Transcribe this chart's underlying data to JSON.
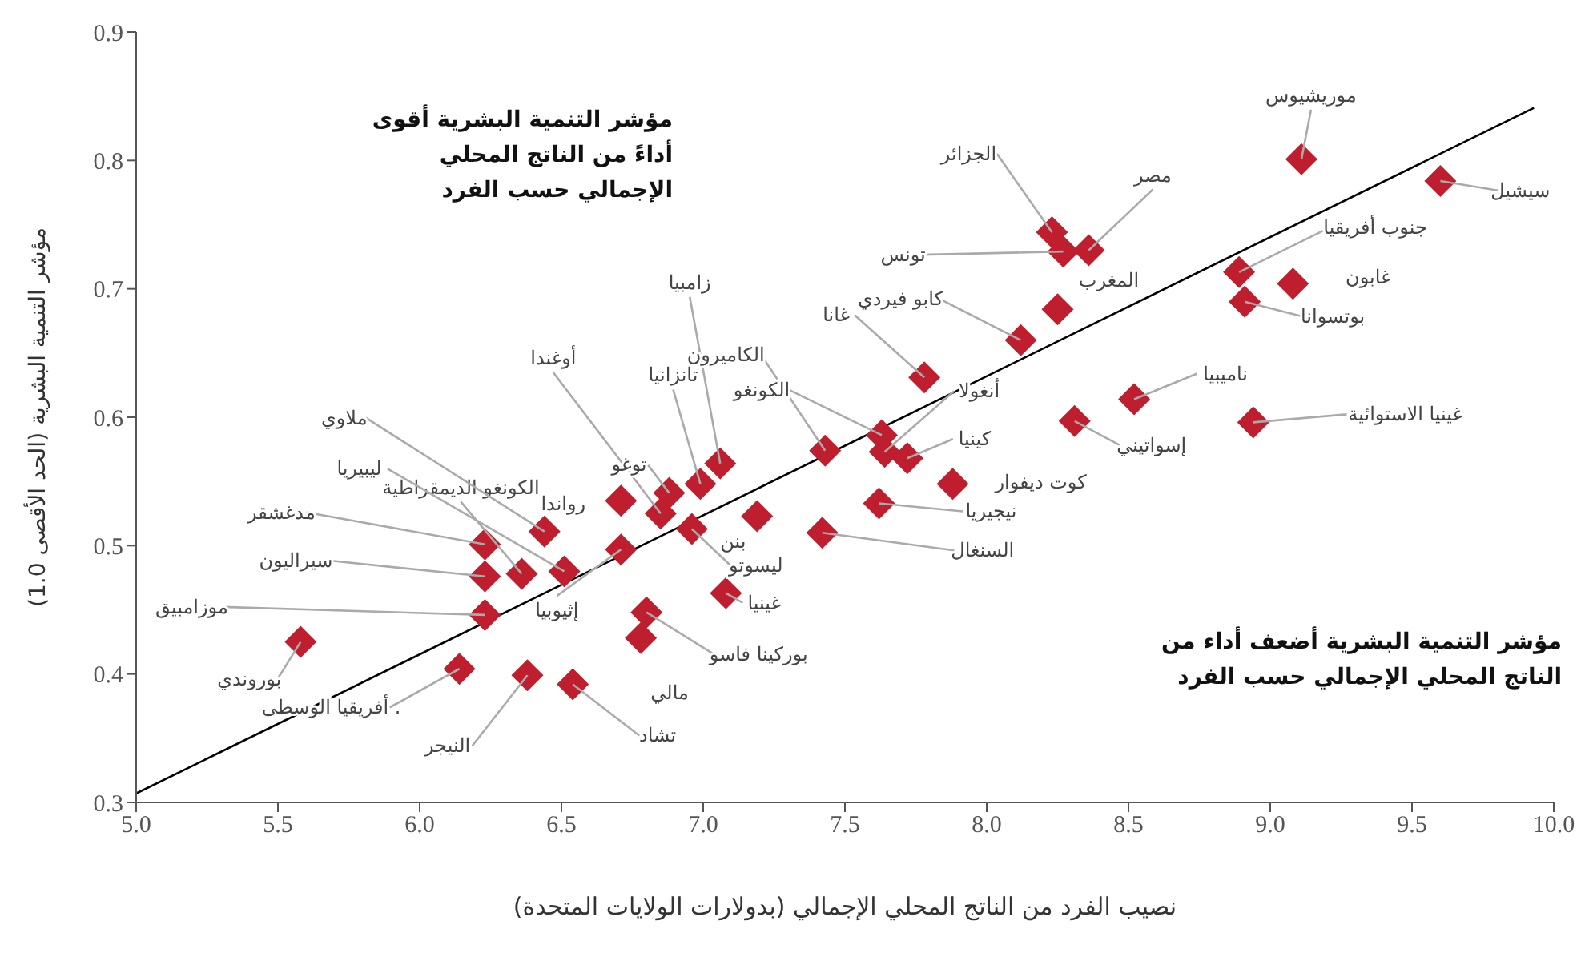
{
  "chart_data": {
    "type": "scatter",
    "xlabel": "نصيب الفرد من الناتج المحلي الإجمالي (بدولارات الولايات المتحدة)",
    "ylabel": "مؤشر التنمية البشرية (الحد الأقصى 1.0)",
    "xlim": [
      5,
      10
    ],
    "ylim": [
      0.3,
      0.9
    ],
    "xticks": [
      {
        "value": 5,
        "label": "5.0"
      },
      5.5,
      {
        "value": 6,
        "label": "6.0"
      },
      6.5,
      {
        "value": 7,
        "label": "7.0"
      },
      7.5,
      {
        "value": 8,
        "label": "8.0"
      },
      8.5,
      {
        "value": 9,
        "label": "9.0"
      },
      9.5,
      {
        "value": 10,
        "label": "10.0"
      }
    ],
    "yticks": [
      0.3,
      0.4,
      0.5,
      0.6,
      0.7,
      0.8,
      0.9
    ],
    "grid": false,
    "legend": false,
    "series": [
      {
        "type": "scatter",
        "color": "#be1e2d",
        "marker": "diamond",
        "x": [
          5.58,
          6.23,
          6.23,
          6.23,
          6.36,
          6.51,
          6.44,
          6.14,
          6.38,
          6.54,
          6.78,
          6.8,
          6.71,
          6.71,
          6.85,
          6.88,
          6.99,
          7.06,
          6.96,
          7.19,
          7.08,
          7.43,
          7.63,
          7.64,
          7.72,
          7.88,
          7.62,
          7.42,
          7.78,
          8.12,
          8.25,
          8.23,
          8.27,
          8.36,
          9.11,
          9.6,
          8.89,
          8.91,
          9.08,
          8.52,
          8.31,
          8.94
        ],
        "values": [
          0.425,
          0.446,
          0.476,
          0.501,
          0.478,
          0.48,
          0.511,
          0.404,
          0.399,
          0.392,
          0.428,
          0.448,
          0.497,
          0.535,
          0.525,
          0.541,
          0.548,
          0.564,
          0.513,
          0.523,
          0.463,
          0.574,
          0.586,
          0.573,
          0.568,
          0.548,
          0.533,
          0.51,
          0.631,
          0.66,
          0.684,
          0.744,
          0.729,
          0.73,
          0.801,
          0.784,
          0.713,
          0.69,
          0.704,
          0.614,
          0.597,
          0.596
        ]
      },
      {
        "type": "line",
        "color": "#000000",
        "marker": "none",
        "line_style": "solid",
        "x": [
          5,
          9.93
        ],
        "values": [
          0.307,
          0.841
        ]
      }
    ],
    "annotations": [
      "مؤشر التنمية البشرية أقوى أداءً من الناتج المحلي الإجمالي حسب الفرد",
      "مؤشر التنمية البشرية أضعف أداء من الناتج المحلي الإجمالي حسب الفرد",
      {
        "text": "بوروندي",
        "x": 5.58,
        "y": 0.425
      },
      {
        "text": "موزامبيق",
        "x": 6.23,
        "y": 0.446
      },
      {
        "text": "سيراليون",
        "x": 6.23,
        "y": 0.476
      },
      {
        "text": "مدغشقر",
        "x": 6.23,
        "y": 0.501
      },
      {
        "text": "الكونغو الديمقراطية",
        "x": 6.36,
        "y": 0.478
      },
      {
        "text": "ليبيريا",
        "x": 6.51,
        "y": 0.48
      },
      {
        "text": "ملاوي",
        "x": 6.44,
        "y": 0.511
      },
      {
        "text": ". أفريقيا الوسطى",
        "x": 6.14,
        "y": 0.404
      },
      {
        "text": "النيجر",
        "x": 6.38,
        "y": 0.399
      },
      {
        "text": "تشاد",
        "x": 6.54,
        "y": 0.392
      },
      {
        "text": "مالي",
        "x": 6.78,
        "y": 0.428
      },
      {
        "text": "بوركينا فاسو",
        "x": 6.8,
        "y": 0.448
      },
      {
        "text": "إثيوبيا",
        "x": 6.71,
        "y": 0.497
      },
      {
        "text": "رواندا",
        "x": 6.71,
        "y": 0.535
      },
      {
        "text": "أوغندا",
        "x": 6.85,
        "y": 0.525
      },
      {
        "text": "توغو",
        "x": 6.88,
        "y": 0.541
      },
      {
        "text": "تانزانيا",
        "x": 6.99,
        "y": 0.548
      },
      {
        "text": "زامبيا",
        "x": 7.06,
        "y": 0.564
      },
      {
        "text": "ليسوتو",
        "x": 6.96,
        "y": 0.513
      },
      {
        "text": "بنن",
        "x": 7.19,
        "y": 0.523
      },
      {
        "text": "غينيا",
        "x": 7.08,
        "y": 0.463
      },
      {
        "text": "الكاميرون",
        "x": 7.43,
        "y": 0.574
      },
      {
        "text": "الكونغو",
        "x": 7.63,
        "y": 0.586
      },
      {
        "text": "أنغولا",
        "x": 7.64,
        "y": 0.573
      },
      {
        "text": "كينيا",
        "x": 7.72,
        "y": 0.568
      },
      {
        "text": "كوت ديفوار",
        "x": 7.88,
        "y": 0.548
      },
      {
        "text": "نيجيريا",
        "x": 7.62,
        "y": 0.533
      },
      {
        "text": "السنغال",
        "x": 7.42,
        "y": 0.51
      },
      {
        "text": "غانا",
        "x": 7.78,
        "y": 0.631
      },
      {
        "text": "كابو فيردي",
        "x": 8.12,
        "y": 0.66
      },
      {
        "text": "المغرب",
        "x": 8.25,
        "y": 0.684
      },
      {
        "text": "الجزائر",
        "x": 8.23,
        "y": 0.744
      },
      {
        "text": "تونس",
        "x": 8.27,
        "y": 0.729
      },
      {
        "text": "مصر",
        "x": 8.36,
        "y": 0.73
      },
      {
        "text": "موريشيوس",
        "x": 9.11,
        "y": 0.801
      },
      {
        "text": "سيشيل",
        "x": 9.6,
        "y": 0.784
      },
      {
        "text": "جنوب أفريقيا",
        "x": 8.89,
        "y": 0.713
      },
      {
        "text": "بوتسوانا",
        "x": 8.91,
        "y": 0.69
      },
      {
        "text": "غابون",
        "x": 9.08,
        "y": 0.704
      },
      {
        "text": "ناميبيا",
        "x": 8.52,
        "y": 0.614
      },
      {
        "text": "إسواتيني",
        "x": 8.31,
        "y": 0.597
      },
      {
        "text": "غينيا الاستوائية",
        "x": 8.94,
        "y": 0.596
      }
    ]
  }
}
